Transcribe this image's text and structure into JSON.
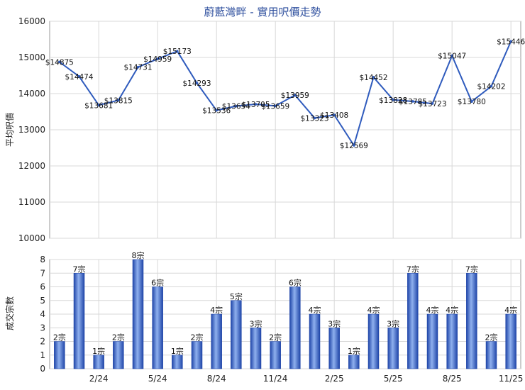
{
  "title": "蔚藍灣畔 - 實用呎價走勢",
  "chart_data": [
    {
      "type": "line",
      "ylabel": "平均呎價",
      "ylim": [
        10000,
        16000
      ],
      "yticks": [
        10000,
        11000,
        12000,
        13000,
        14000,
        15000,
        16000
      ],
      "grid": true,
      "color": "#2f5bbd",
      "values": [
        14875,
        14474,
        13681,
        13815,
        14731,
        14959,
        15173,
        14293,
        13536,
        13654,
        13705,
        13659,
        13959,
        13323,
        13408,
        12569,
        14452,
        13828,
        13785,
        13723,
        15047,
        13780,
        14202,
        15446
      ],
      "labels": [
        "$14875",
        "$14474",
        "$13681",
        "$13815",
        "$14731",
        "$14959",
        "$15173",
        "$14293",
        "$13536",
        "$13654",
        "$13705",
        "$13659",
        "$13959",
        "$13323",
        "$13408",
        "$12569",
        "$14452",
        "$13828",
        "$13785",
        "$13723",
        "$15047",
        "$13780",
        "$14202",
        "$15446"
      ]
    },
    {
      "type": "bar",
      "ylabel": "成交宗數",
      "ylim": [
        0,
        8
      ],
      "yticks": [
        0,
        1,
        2,
        3,
        4,
        5,
        6,
        7,
        8
      ],
      "grid": true,
      "color": "#2f5bbd",
      "values": [
        2,
        7,
        1,
        2,
        8,
        6,
        1,
        2,
        4,
        5,
        3,
        2,
        6,
        4,
        3,
        1,
        4,
        3,
        7,
        4,
        4,
        7,
        2,
        4
      ],
      "labels": [
        "2宗",
        "7宗",
        "1宗",
        "2宗",
        "8宗",
        "6宗",
        "1宗",
        "2宗",
        "4宗",
        "5宗",
        "3宗",
        "2宗",
        "6宗",
        "4宗",
        "3宗",
        "1宗",
        "4宗",
        "3宗",
        "7宗",
        "4宗",
        "4宗",
        "7宗",
        "2宗",
        "4宗"
      ],
      "xtick_labels": [
        "2/24",
        "5/24",
        "8/24",
        "11/24",
        "2/25",
        "5/25",
        "8/25",
        "11/25"
      ],
      "xtick_indices": [
        2,
        5,
        8,
        11,
        14,
        17,
        20,
        23
      ]
    }
  ]
}
